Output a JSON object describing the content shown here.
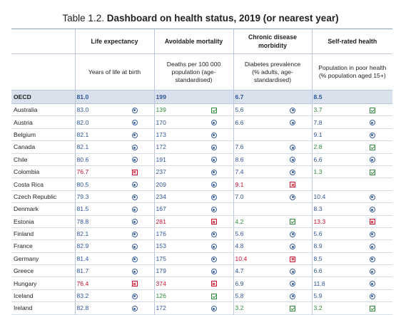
{
  "title": {
    "prefix": "Table 1.2.",
    "main": "Dashboard on health status, 2019 (or nearest year)"
  },
  "groups": [
    {
      "label": "Life expectancy",
      "sub": "Years of life at birth"
    },
    {
      "label": "Avoidable mortality",
      "sub": "Deaths per 100 000 population (age-standardised)"
    },
    {
      "label": "Chronic disease morbidity",
      "sub": "Diabetes prevalence (% adults, age-standardised)"
    },
    {
      "label": "Self-rated health",
      "sub": "Population in poor health (% population aged 15+)"
    }
  ],
  "colors": {
    "better": "#2e8b3a",
    "close": "#2f5597",
    "worse": "#c8102e",
    "oecd_band": "#d9e1ec"
  },
  "oecd": {
    "country": "OECD",
    "values": [
      "81.0",
      "199",
      "6.7",
      "8.5"
    ]
  },
  "rows": [
    {
      "country": "Australia",
      "cells": [
        [
          "83.0",
          "close"
        ],
        [
          "139",
          "better"
        ],
        [
          "5.6",
          "close"
        ],
        [
          "3.7",
          "better"
        ]
      ]
    },
    {
      "country": "Austria",
      "cells": [
        [
          "82.0",
          "close"
        ],
        [
          "170",
          "close"
        ],
        [
          "6.6",
          "close"
        ],
        [
          "7.8",
          "close"
        ]
      ]
    },
    {
      "country": "Belgium",
      "cells": [
        [
          "82.1",
          "close"
        ],
        [
          "173",
          "close"
        ],
        [
          "",
          ""
        ],
        [
          "9.1",
          "close"
        ]
      ]
    },
    {
      "country": "Canada",
      "cells": [
        [
          "82.1",
          "close"
        ],
        [
          "172",
          "close"
        ],
        [
          "7.6",
          "close"
        ],
        [
          "2.8",
          "better"
        ]
      ]
    },
    {
      "country": "Chile",
      "cells": [
        [
          "80.6",
          "close"
        ],
        [
          "191",
          "close"
        ],
        [
          "8.6",
          "close"
        ],
        [
          "6.6",
          "close"
        ]
      ]
    },
    {
      "country": "Colombia",
      "cells": [
        [
          "76.7",
          "worse"
        ],
        [
          "237",
          "close"
        ],
        [
          "7.4",
          "close"
        ],
        [
          "1.3",
          "better"
        ]
      ]
    },
    {
      "country": "Costa Rica",
      "cells": [
        [
          "80.5",
          "close"
        ],
        [
          "209",
          "close"
        ],
        [
          "9.1",
          "worse"
        ],
        [
          "",
          ""
        ]
      ]
    },
    {
      "country": "Czech Republic",
      "cells": [
        [
          "79.3",
          "close"
        ],
        [
          "234",
          "close"
        ],
        [
          "7.0",
          "close"
        ],
        [
          "10.4",
          "close"
        ]
      ]
    },
    {
      "country": "Denmark",
      "cells": [
        [
          "81.5",
          "close"
        ],
        [
          "167",
          "close"
        ],
        [
          "",
          ""
        ],
        [
          "8.3",
          "close"
        ]
      ]
    },
    {
      "country": "Estonia",
      "cells": [
        [
          "78.8",
          "close"
        ],
        [
          "281",
          "worse"
        ],
        [
          "4.2",
          "better"
        ],
        [
          "13.3",
          "worse"
        ]
      ]
    },
    {
      "country": "Finland",
      "cells": [
        [
          "82.1",
          "close"
        ],
        [
          "176",
          "close"
        ],
        [
          "5.6",
          "close"
        ],
        [
          "5.6",
          "close"
        ]
      ]
    },
    {
      "country": "France",
      "cells": [
        [
          "82.9",
          "close"
        ],
        [
          "153",
          "close"
        ],
        [
          "4.8",
          "close"
        ],
        [
          "8.9",
          "close"
        ]
      ]
    },
    {
      "country": "Germany",
      "cells": [
        [
          "81.4",
          "close"
        ],
        [
          "175",
          "close"
        ],
        [
          "10.4",
          "worse"
        ],
        [
          "8.5",
          "close"
        ]
      ]
    },
    {
      "country": "Greece",
      "cells": [
        [
          "81.7",
          "close"
        ],
        [
          "179",
          "close"
        ],
        [
          "4.7",
          "close"
        ],
        [
          "6.6",
          "close"
        ]
      ]
    },
    {
      "country": "Hungary",
      "cells": [
        [
          "76.4",
          "worse"
        ],
        [
          "374",
          "worse"
        ],
        [
          "6.9",
          "close"
        ],
        [
          "11.8",
          "close"
        ]
      ]
    },
    {
      "country": "Iceland",
      "cells": [
        [
          "83.2",
          "close"
        ],
        [
          "126",
          "better"
        ],
        [
          "5.8",
          "close"
        ],
        [
          "5.9",
          "close"
        ]
      ]
    },
    {
      "country": "Ireland",
      "cells": [
        [
          "82.8",
          "close"
        ],
        [
          "172",
          "close"
        ],
        [
          "3.2",
          "better"
        ],
        [
          "3.2",
          "better"
        ]
      ]
    }
  ]
}
